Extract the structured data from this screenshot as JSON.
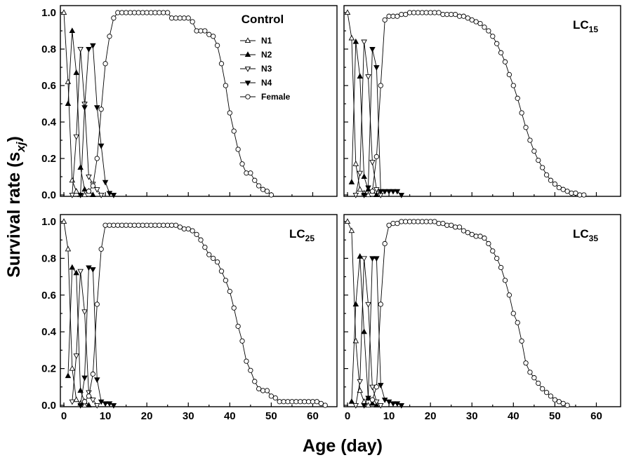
{
  "figure": {
    "ylabel_main": "Survival rate (s",
    "ylabel_sub": "xj",
    "ylabel_close": ")",
    "xlabel": "Age (day)"
  },
  "styles": {
    "N1": {
      "marker": "triangle-up",
      "fill": "#ffffff"
    },
    "N2": {
      "marker": "triangle-up",
      "fill": "#000000"
    },
    "N3": {
      "marker": "triangle-down",
      "fill": "#ffffff"
    },
    "N4": {
      "marker": "triangle-down",
      "fill": "#000000"
    },
    "Female": {
      "marker": "circle",
      "fill": "#ffffff"
    }
  },
  "chart_data": [
    {
      "type": "line",
      "title": "Control",
      "title_main": "Control",
      "title_sub": "",
      "legend": [
        "N1",
        "N2",
        "N3",
        "N4",
        "Female"
      ],
      "legend_position": "top-right",
      "xlim": [
        0,
        65
      ],
      "ylim": [
        0,
        1.0
      ],
      "xticks": [
        "0",
        "10",
        "20",
        "30",
        "40",
        "50",
        "60"
      ],
      "yticks": [
        "0.0",
        "0.2",
        "0.4",
        "0.6",
        "0.8",
        "1.0"
      ],
      "series": [
        {
          "name": "N1",
          "x": [
            0,
            1,
            2,
            3,
            4,
            5
          ],
          "y": [
            1.0,
            0.62,
            0.08,
            0.02,
            0,
            0
          ]
        },
        {
          "name": "N2",
          "x": [
            1,
            2,
            3,
            4,
            5,
            6,
            7
          ],
          "y": [
            0.5,
            0.9,
            0.67,
            0.15,
            0.03,
            0.02,
            0
          ]
        },
        {
          "name": "N3",
          "x": [
            2,
            3,
            4,
            5,
            6,
            7,
            8,
            9
          ],
          "y": [
            0,
            0.32,
            0.8,
            0.5,
            0.1,
            0.06,
            0.03,
            0
          ]
        },
        {
          "name": "N4",
          "x": [
            4,
            5,
            6,
            7,
            8,
            9,
            10,
            11,
            12
          ],
          "y": [
            0,
            0.48,
            0.8,
            0.82,
            0.48,
            0.27,
            0.07,
            0.01,
            0
          ]
        },
        {
          "name": "Female",
          "x": [
            6,
            7,
            8,
            9,
            10,
            11,
            12,
            13,
            14,
            15,
            16,
            17,
            18,
            19,
            20,
            21,
            22,
            23,
            24,
            25,
            26,
            27,
            28,
            29,
            30,
            31,
            32,
            33,
            34,
            35,
            36,
            37,
            38,
            39,
            40,
            41,
            42,
            43,
            44,
            45,
            46,
            47,
            48,
            49,
            50
          ],
          "y": [
            0.02,
            0.05,
            0.2,
            0.47,
            0.72,
            0.87,
            0.97,
            1.0,
            1.0,
            1.0,
            1.0,
            1.0,
            1.0,
            1.0,
            1.0,
            1.0,
            1.0,
            1.0,
            1.0,
            1.0,
            0.97,
            0.97,
            0.97,
            0.97,
            0.97,
            0.95,
            0.9,
            0.9,
            0.9,
            0.88,
            0.87,
            0.82,
            0.72,
            0.6,
            0.45,
            0.35,
            0.25,
            0.17,
            0.12,
            0.12,
            0.08,
            0.05,
            0.03,
            0.02,
            0.0
          ]
        }
      ]
    },
    {
      "type": "line",
      "title": "LC15",
      "title_main": "LC",
      "title_sub": "15",
      "xlim": [
        0,
        65
      ],
      "ylim": [
        0,
        1.0
      ],
      "xticks": [
        "0",
        "10",
        "20",
        "30",
        "40",
        "50",
        "60"
      ],
      "yticks": [
        "0.0",
        "0.2",
        "0.4",
        "0.6",
        "0.8",
        "1.0"
      ],
      "series": [
        {
          "name": "N1",
          "x": [
            0,
            1,
            2,
            3,
            4,
            5
          ],
          "y": [
            1.0,
            0.86,
            0.17,
            0.03,
            0.01,
            0
          ]
        },
        {
          "name": "N2",
          "x": [
            1,
            2,
            3,
            4,
            5,
            6,
            7
          ],
          "y": [
            0.07,
            0.84,
            0.65,
            0.1,
            0.03,
            0.02,
            0
          ]
        },
        {
          "name": "N3",
          "x": [
            2,
            3,
            4,
            5,
            6,
            7,
            8
          ],
          "y": [
            0,
            0.12,
            0.84,
            0.65,
            0.18,
            0.03,
            0
          ]
        },
        {
          "name": "N4",
          "x": [
            4,
            5,
            6,
            7,
            8,
            9,
            10,
            11,
            12,
            13
          ],
          "y": [
            0,
            0.04,
            0.8,
            0.7,
            0.02,
            0.02,
            0.02,
            0.02,
            0.02,
            0
          ]
        },
        {
          "name": "Female",
          "x": [
            6,
            7,
            8,
            9,
            10,
            11,
            12,
            13,
            14,
            15,
            16,
            17,
            18,
            19,
            20,
            21,
            22,
            23,
            24,
            25,
            26,
            27,
            28,
            29,
            30,
            31,
            32,
            33,
            34,
            35,
            36,
            37,
            38,
            39,
            40,
            41,
            42,
            43,
            44,
            45,
            46,
            47,
            48,
            49,
            50,
            51,
            52,
            53,
            54,
            55,
            56,
            57
          ],
          "y": [
            0.02,
            0.21,
            0.6,
            0.96,
            0.98,
            0.98,
            0.98,
            0.99,
            0.99,
            1.0,
            1.0,
            1.0,
            1.0,
            1.0,
            1.0,
            1.0,
            1.0,
            0.99,
            0.99,
            0.99,
            0.99,
            0.98,
            0.98,
            0.97,
            0.96,
            0.95,
            0.94,
            0.92,
            0.9,
            0.87,
            0.83,
            0.78,
            0.73,
            0.66,
            0.6,
            0.53,
            0.45,
            0.37,
            0.3,
            0.24,
            0.19,
            0.15,
            0.11,
            0.08,
            0.06,
            0.04,
            0.03,
            0.02,
            0.01,
            0.01,
            0.0,
            0.0
          ]
        }
      ]
    },
    {
      "type": "line",
      "title": "LC25",
      "title_main": "LC",
      "title_sub": "25",
      "xlim": [
        0,
        65
      ],
      "ylim": [
        0,
        1.0
      ],
      "xticks": [
        "0",
        "10",
        "20",
        "30",
        "40",
        "50",
        "60"
      ],
      "yticks": [
        "0.0",
        "0.2",
        "0.4",
        "0.6",
        "0.8",
        "1.0"
      ],
      "series": [
        {
          "name": "N1",
          "x": [
            0,
            1,
            2,
            3,
            4,
            5
          ],
          "y": [
            1.0,
            0.85,
            0.2,
            0.03,
            0.01,
            0
          ]
        },
        {
          "name": "N2",
          "x": [
            1,
            2,
            3,
            4,
            5,
            6
          ],
          "y": [
            0.16,
            0.75,
            0.72,
            0.08,
            0.02,
            0
          ]
        },
        {
          "name": "N3",
          "x": [
            2,
            3,
            4,
            5,
            6,
            7,
            8
          ],
          "y": [
            0.02,
            0.27,
            0.73,
            0.51,
            0.07,
            0.03,
            0
          ]
        },
        {
          "name": "N4",
          "x": [
            4,
            5,
            6,
            7,
            8,
            9,
            10,
            11,
            12
          ],
          "y": [
            0,
            0.15,
            0.75,
            0.74,
            0.14,
            0.02,
            0.01,
            0.01,
            0
          ]
        },
        {
          "name": "Female",
          "x": [
            5,
            6,
            7,
            8,
            9,
            10,
            11,
            12,
            13,
            14,
            15,
            16,
            17,
            18,
            19,
            20,
            21,
            22,
            23,
            24,
            25,
            26,
            27,
            28,
            29,
            30,
            31,
            32,
            33,
            34,
            35,
            36,
            37,
            38,
            39,
            40,
            41,
            42,
            43,
            44,
            45,
            46,
            47,
            48,
            49,
            50,
            51,
            52,
            53,
            54,
            55,
            56,
            57,
            58,
            59,
            60,
            61,
            62,
            63
          ],
          "y": [
            0.02,
            0.05,
            0.17,
            0.55,
            0.85,
            0.98,
            0.98,
            0.98,
            0.98,
            0.98,
            0.98,
            0.98,
            0.98,
            0.98,
            0.98,
            0.98,
            0.98,
            0.98,
            0.98,
            0.98,
            0.98,
            0.98,
            0.98,
            0.97,
            0.96,
            0.96,
            0.95,
            0.93,
            0.9,
            0.86,
            0.82,
            0.8,
            0.78,
            0.73,
            0.68,
            0.62,
            0.53,
            0.43,
            0.35,
            0.24,
            0.19,
            0.13,
            0.09,
            0.08,
            0.08,
            0.05,
            0.04,
            0.02,
            0.02,
            0.02,
            0.02,
            0.02,
            0.02,
            0.02,
            0.02,
            0.02,
            0.02,
            0.01,
            0.0
          ]
        }
      ]
    },
    {
      "type": "line",
      "title": "LC35",
      "title_main": "LC",
      "title_sub": "35",
      "xlim": [
        0,
        65
      ],
      "ylim": [
        0,
        1.0
      ],
      "xticks": [
        "0",
        "10",
        "20",
        "30",
        "40",
        "50",
        "60"
      ],
      "yticks": [
        "0.0",
        "0.2",
        "0.4",
        "0.6",
        "0.8",
        "1.0"
      ],
      "series": [
        {
          "name": "N1",
          "x": [
            0,
            1,
            2,
            3,
            4,
            5
          ],
          "y": [
            1.0,
            0.95,
            0.35,
            0.08,
            0.02,
            0
          ]
        },
        {
          "name": "N2",
          "x": [
            1,
            2,
            3,
            4,
            5,
            6,
            7
          ],
          "y": [
            0.02,
            0.55,
            0.81,
            0.4,
            0.04,
            0.01,
            0
          ]
        },
        {
          "name": "N3",
          "x": [
            2,
            3,
            4,
            5,
            6,
            7,
            8
          ],
          "y": [
            0,
            0.13,
            0.8,
            0.55,
            0.1,
            0.02,
            0
          ]
        },
        {
          "name": "N4",
          "x": [
            4,
            5,
            6,
            7,
            8,
            9,
            10,
            11,
            12,
            13
          ],
          "y": [
            0,
            0.04,
            0.8,
            0.8,
            0.11,
            0.03,
            0.02,
            0.01,
            0.01,
            0
          ]
        },
        {
          "name": "Female",
          "x": [
            6,
            7,
            8,
            9,
            10,
            11,
            12,
            13,
            14,
            15,
            16,
            17,
            18,
            19,
            20,
            21,
            22,
            23,
            24,
            25,
            26,
            27,
            28,
            29,
            30,
            31,
            32,
            33,
            34,
            35,
            36,
            37,
            38,
            39,
            40,
            41,
            42,
            43,
            44,
            45,
            46,
            47,
            48,
            49,
            50,
            51,
            52,
            53
          ],
          "y": [
            0.03,
            0.1,
            0.55,
            0.88,
            0.98,
            0.99,
            0.99,
            1.0,
            1.0,
            1.0,
            1.0,
            1.0,
            1.0,
            1.0,
            1.0,
            1.0,
            0.99,
            0.99,
            0.98,
            0.98,
            0.97,
            0.97,
            0.95,
            0.94,
            0.93,
            0.92,
            0.92,
            0.91,
            0.88,
            0.84,
            0.8,
            0.75,
            0.68,
            0.6,
            0.5,
            0.45,
            0.35,
            0.23,
            0.18,
            0.15,
            0.12,
            0.09,
            0.07,
            0.05,
            0.03,
            0.02,
            0.01,
            0.0
          ]
        }
      ]
    }
  ]
}
